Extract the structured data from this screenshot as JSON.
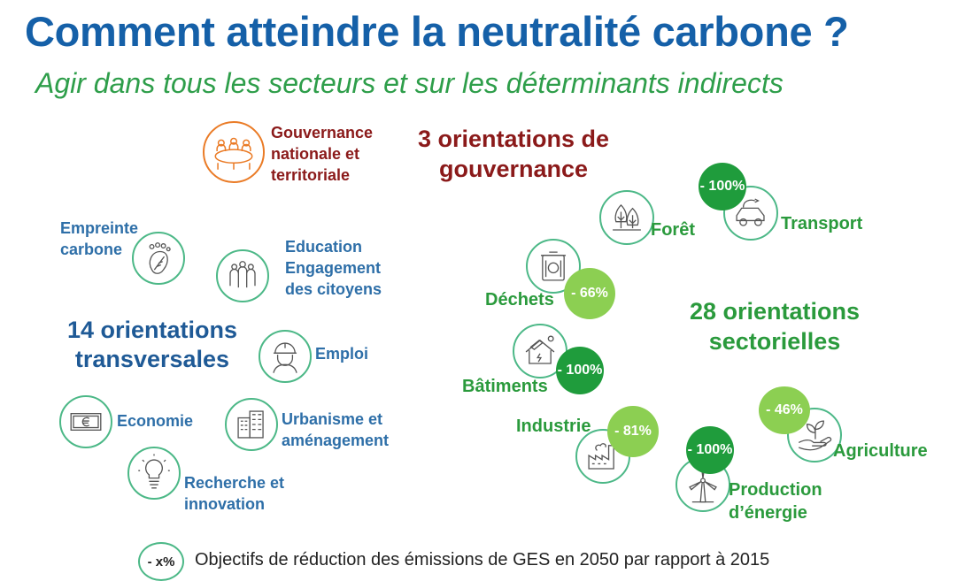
{
  "title": "Comment atteindre la neutralité carbone ?",
  "subtitle": "Agir dans tous les secteurs et sur les déterminants indirects",
  "governance": {
    "heading_line1": "3 orientations de",
    "heading_line2": "gouvernance",
    "item": {
      "line1": "Gouvernance",
      "line2": "nationale et",
      "line3": "territoriale",
      "icon": "meeting-table-icon"
    }
  },
  "transversal": {
    "heading_line1": "14 orientations",
    "heading_line2": "transversales",
    "items": [
      {
        "line1": "Empreinte",
        "line2": "carbone",
        "icon": "footprint-leaf-icon"
      },
      {
        "line1": "Education",
        "line2": "Engagement",
        "line3": "des citoyens",
        "icon": "citizens-icon"
      },
      {
        "line1": "Emploi",
        "icon": "worker-helmet-icon"
      },
      {
        "line1": "Economie",
        "icon": "euro-banknote-icon"
      },
      {
        "line1": "Urbanisme et",
        "line2": "aménagement",
        "icon": "buildings-icon"
      },
      {
        "line1": "Recherche et",
        "line2": "innovation",
        "icon": "lightbulb-icon"
      }
    ]
  },
  "sectoral": {
    "heading_line1": "28 orientations",
    "heading_line2": "sectorielles",
    "items": [
      {
        "label": "Forêt",
        "icon": "trees-icon",
        "reduction": ""
      },
      {
        "label": "Transport",
        "icon": "electric-car-icon",
        "reduction": "- 100%"
      },
      {
        "label": "Déchets",
        "icon": "recycling-bin-icon",
        "reduction": "- 66%"
      },
      {
        "label": "Bâtiments",
        "icon": "solar-house-icon",
        "reduction": "- 100%"
      },
      {
        "label": "Industrie",
        "icon": "factory-icon",
        "reduction": "- 81%"
      },
      {
        "label_line1": "Production",
        "label_line2": "d’énergie",
        "icon": "wind-turbine-icon",
        "reduction": "- 100%"
      },
      {
        "label": "Agriculture",
        "icon": "hand-plant-icon",
        "reduction": "- 46%"
      }
    ]
  },
  "legend": {
    "badge": "- x%",
    "text": "Objectifs de réduction des émissions de GES en 2050 par rapport à 2015"
  },
  "colors": {
    "title": "#1560a8",
    "subtitle": "#2e9e4a",
    "governance": "#8b1a1a",
    "transversal": "#1f5a96",
    "sectoral": "#2a9a3c",
    "badge_dark": "#1f9c3c",
    "badge_light": "#8ccf52",
    "icon_border": "#4cb887",
    "governance_icon_border": "#ea7b26"
  }
}
